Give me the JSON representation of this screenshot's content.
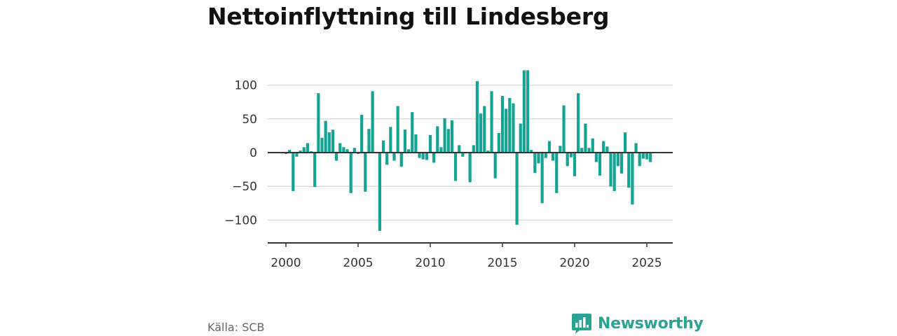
{
  "title": "Nettoinflyttning till Lindesberg",
  "source": "Källa: SCB",
  "brand": "Newsworthy",
  "colors": {
    "bar": "#15a394",
    "grid": "#dddddd",
    "zero_line": "#333333",
    "brand": "#2ba394"
  },
  "chart_data": {
    "type": "bar",
    "title": "Nettoinflyttning till Lindesberg",
    "xlabel": "",
    "ylabel": "",
    "ylim": [
      -135,
      135
    ],
    "y_ticks": [
      100,
      50,
      0,
      -50,
      -100
    ],
    "y_tick_labels": [
      "100",
      "50",
      "0",
      "−50",
      "−100"
    ],
    "x_ticks": [
      2000,
      2005,
      2010,
      2015,
      2020,
      2025
    ],
    "x_tick_labels": [
      "2000",
      "2005",
      "2010",
      "2015",
      "2020",
      "2025"
    ],
    "grid": true,
    "x": [
      2000.0,
      2000.25,
      2000.5,
      2000.75,
      2001.0,
      2001.25,
      2001.5,
      2001.75,
      2002.0,
      2002.25,
      2002.5,
      2002.75,
      2003.0,
      2003.25,
      2003.5,
      2003.75,
      2004.0,
      2004.25,
      2004.5,
      2004.75,
      2005.0,
      2005.25,
      2005.5,
      2005.75,
      2006.0,
      2006.25,
      2006.5,
      2006.75,
      2007.0,
      2007.25,
      2007.5,
      2007.75,
      2008.0,
      2008.25,
      2008.5,
      2008.75,
      2009.0,
      2009.25,
      2009.5,
      2009.75,
      2010.0,
      2010.25,
      2010.5,
      2010.75,
      2011.0,
      2011.25,
      2011.5,
      2011.75,
      2012.0,
      2012.25,
      2012.5,
      2012.75,
      2013.0,
      2013.25,
      2013.5,
      2013.75,
      2014.0,
      2014.25,
      2014.5,
      2014.75,
      2015.0,
      2015.25,
      2015.5,
      2015.75,
      2016.0,
      2016.25,
      2016.5,
      2016.75,
      2017.0,
      2017.25,
      2017.5,
      2017.75,
      2018.0,
      2018.25,
      2018.5,
      2018.75,
      2019.0,
      2019.25,
      2019.5,
      2019.75,
      2020.0,
      2020.25,
      2020.5,
      2020.75,
      2021.0,
      2021.25,
      2021.5,
      2021.75,
      2022.0,
      2022.25,
      2022.5,
      2022.75,
      2023.0,
      2023.25,
      2023.5,
      2023.75,
      2024.0,
      2024.25,
      2024.5,
      2024.75,
      2025.0,
      2025.25
    ],
    "values": [
      -2,
      4,
      -57,
      -6,
      3,
      8,
      14,
      2,
      -51,
      88,
      22,
      47,
      30,
      34,
      -12,
      14,
      8,
      5,
      -60,
      7,
      -2,
      56,
      -58,
      35,
      91,
      1,
      -116,
      18,
      -18,
      38,
      -12,
      69,
      -21,
      34,
      5,
      60,
      27,
      -8,
      -10,
      -11,
      26,
      -15,
      39,
      8,
      51,
      35,
      48,
      -42,
      11,
      -6,
      1,
      -44,
      11,
      106,
      58,
      69,
      3,
      91,
      -38,
      29,
      84,
      65,
      81,
      73,
      -107,
      43,
      122,
      122,
      4,
      -30,
      -16,
      -75,
      -8,
      17,
      -12,
      -60,
      10,
      70,
      -20,
      -7,
      -35,
      88,
      7,
      43,
      7,
      21,
      -14,
      -34,
      17,
      9,
      -50,
      -57,
      -20,
      -31,
      30,
      -52,
      -77,
      14,
      -20,
      -9,
      -10,
      -14
    ]
  }
}
